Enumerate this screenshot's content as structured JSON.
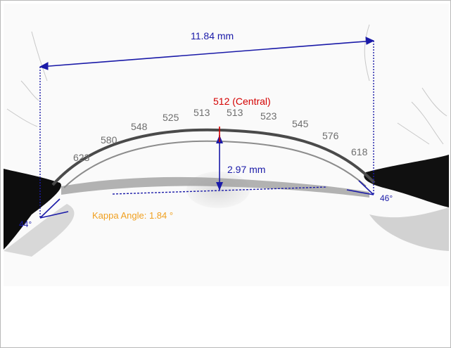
{
  "measurements": {
    "width_label": "11.84 mm",
    "central_label": "512 (Central)",
    "depth_label": "2.97 mm",
    "kappa_label": "Kappa Angle: 1.84 °",
    "angle_left": "44°",
    "angle_right": "46°"
  },
  "thickness_values": [
    "623",
    "580",
    "548",
    "525",
    "513",
    "513",
    "523",
    "545",
    "576",
    "618"
  ],
  "colors": {
    "measure_line": "#1a1aa8",
    "central": "#d40000",
    "thickness_text": "#6e6e6e",
    "kappa": "#f0a020"
  }
}
